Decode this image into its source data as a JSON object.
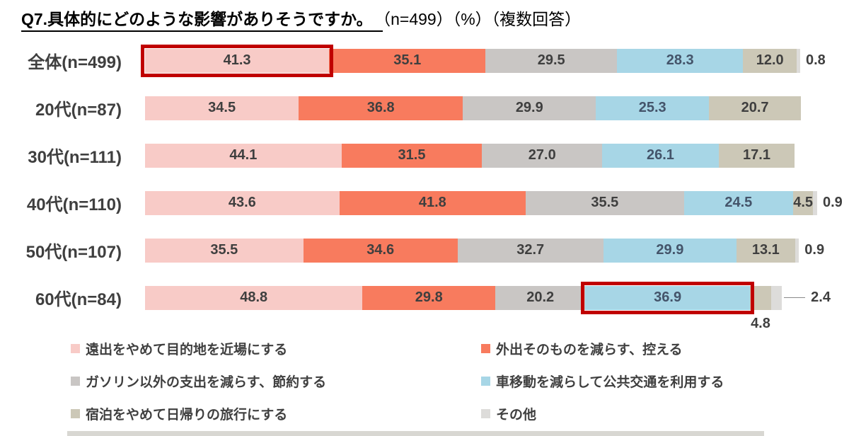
{
  "title": {
    "question": "Q7.具体的にどのような影響がありそうですか。",
    "suffix": "（n=499）（%）（複数回答）"
  },
  "colors": {
    "pink": "#f8cbc7",
    "salmon": "#f87b5e",
    "gray": "#c9c6c4",
    "blue": "#a7d6e6",
    "tan": "#ccc8b7",
    "lightgray": "#dddcda",
    "highlight_border": "#c00000",
    "value_text": "#3f3f3f",
    "value_text_on_blue": "#44546a"
  },
  "chart_data": {
    "type": "bar",
    "orientation": "horizontal-stacked",
    "unit": "%",
    "title": "Q7.具体的にどのような影響がありそうですか。（n=499）（%）（複数回答）",
    "categories": [
      "全体(n=499)",
      "20代(n=87)",
      "30代(n=111)",
      "40代(n=110)",
      "50代(n=107)",
      "60代(n=84)"
    ],
    "series": [
      {
        "name": "遠出をやめて目的地を近場にする",
        "color_key": "pink",
        "values": [
          41.3,
          34.5,
          44.1,
          43.6,
          35.5,
          48.8
        ]
      },
      {
        "name": "外出そのものを減らす、控える",
        "color_key": "salmon",
        "values": [
          35.1,
          36.8,
          31.5,
          41.8,
          34.6,
          29.8
        ]
      },
      {
        "name": "ガソリン以外の支出を減らす、節約する",
        "color_key": "gray",
        "values": [
          29.5,
          29.9,
          27.0,
          35.5,
          32.7,
          20.2
        ]
      },
      {
        "name": "車移動を減らして公共交通を利用する",
        "color_key": "blue",
        "values": [
          28.3,
          25.3,
          26.1,
          24.5,
          29.9,
          36.9
        ]
      },
      {
        "name": "宿泊をやめて日帰りの旅行にする",
        "color_key": "tan",
        "values": [
          12.0,
          20.7,
          17.1,
          4.5,
          13.1,
          4.8
        ]
      },
      {
        "name": "その他",
        "color_key": "lightgray",
        "values": [
          0.8,
          null,
          null,
          0.9,
          0.9,
          2.4
        ]
      }
    ],
    "highlights": [
      {
        "row": 0,
        "series": 0,
        "value": 41.3
      },
      {
        "row": 5,
        "series": 3,
        "value": 36.9
      }
    ],
    "label_overrides": [
      {
        "row": 0,
        "series": 5,
        "pos": "outside"
      },
      {
        "row": 3,
        "series": 5,
        "pos": "outside"
      },
      {
        "row": 4,
        "series": 5,
        "pos": "outside"
      },
      {
        "row": 5,
        "series": 4,
        "pos": "below"
      },
      {
        "row": 5,
        "series": 5,
        "pos": "leader"
      }
    ],
    "legend_position": "bottom",
    "grid": false,
    "xlim": [
      0,
      160
    ]
  }
}
